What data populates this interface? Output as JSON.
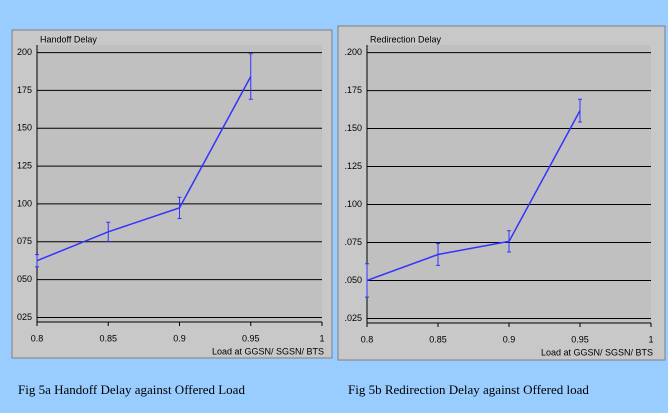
{
  "chart_data": [
    {
      "type": "line",
      "title": "Handoff Delay",
      "xlabel": "Load at GGSN/ SGSN/ BTS",
      "caption": "Fig 5a Handoff Delay against Offered Load",
      "x": [
        0.8,
        0.85,
        0.9,
        0.95
      ],
      "values": [
        0.0625,
        0.0816,
        0.0974,
        0.1842
      ],
      "errors": [
        0.004,
        0.0063,
        0.007,
        0.015
      ],
      "color": "#3333ff",
      "xlim": [
        0.8,
        1
      ],
      "xticks": [
        0.8,
        0.85,
        0.9,
        0.95,
        1
      ],
      "ylim": [
        0.022,
        0.205
      ],
      "yticks": [
        {
          "value": 0.025,
          "label": "025"
        },
        {
          "value": 0.05,
          "label": "050"
        },
        {
          "value": 0.075,
          "label": "075"
        },
        {
          "value": 0.1,
          "label": "100"
        },
        {
          "value": 0.125,
          "label": "125"
        },
        {
          "value": 0.15,
          "label": "150"
        },
        {
          "value": 0.175,
          "label": "175"
        },
        {
          "value": 0.2,
          "label": "200"
        }
      ],
      "grid": true
    },
    {
      "type": "line",
      "title": "Redirection Delay",
      "xlabel": "Load at GGSN/ SGSN/ BTS",
      "caption": "Fig 5b Redirection Delay against Offered load",
      "x": [
        0.8,
        0.85,
        0.9,
        0.95
      ],
      "values": [
        0.05,
        0.0671,
        0.0757,
        0.1618
      ],
      "errors": [
        0.011,
        0.0072,
        0.007,
        0.0075
      ],
      "color": "#3333ff",
      "xlim": [
        0.8,
        1
      ],
      "xticks": [
        0.8,
        0.85,
        0.9,
        0.95,
        1
      ],
      "ylim": [
        0.022,
        0.205
      ],
      "yticks": [
        {
          "value": 0.025,
          "label": ".025"
        },
        {
          "value": 0.05,
          "label": ".050"
        },
        {
          "value": 0.075,
          "label": ".075"
        },
        {
          "value": 0.1,
          "label": ".100"
        },
        {
          "value": 0.125,
          "label": ".125"
        },
        {
          "value": 0.15,
          "label": ".150"
        },
        {
          "value": 0.175,
          "label": ".175"
        },
        {
          "value": 0.2,
          "label": ".200"
        }
      ],
      "grid": true
    }
  ]
}
